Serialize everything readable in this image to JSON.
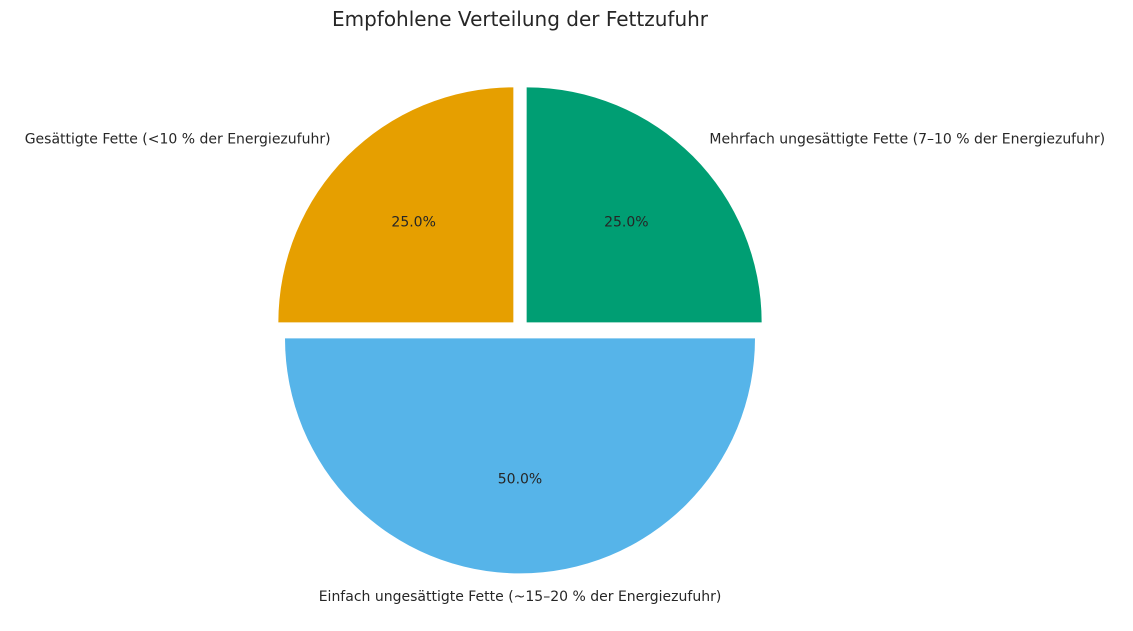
{
  "chart_data": {
    "type": "pie",
    "title": "Empfohlene Verteilung der Fettzufuhr",
    "start_angle_deg": 90,
    "direction": "counterclockwise",
    "slices": [
      {
        "label": "Gesättigte Fette (<10 % der Energiezufuhr)",
        "value": 25.0,
        "pct_label": "25.0%",
        "color": "#E69F00"
      },
      {
        "label": "Einfach ungesättigte Fette (~15–20 % der Energiezufuhr)",
        "value": 50.0,
        "pct_label": "50.0%",
        "color": "#56B4E9"
      },
      {
        "label": "Mehrfach ungesättigte Fette (7–10 % der Energiezufuhr)",
        "value": 25.0,
        "pct_label": "25.0%",
        "color": "#009E73"
      }
    ],
    "explode": [
      0.04,
      0.04,
      0.04
    ]
  }
}
